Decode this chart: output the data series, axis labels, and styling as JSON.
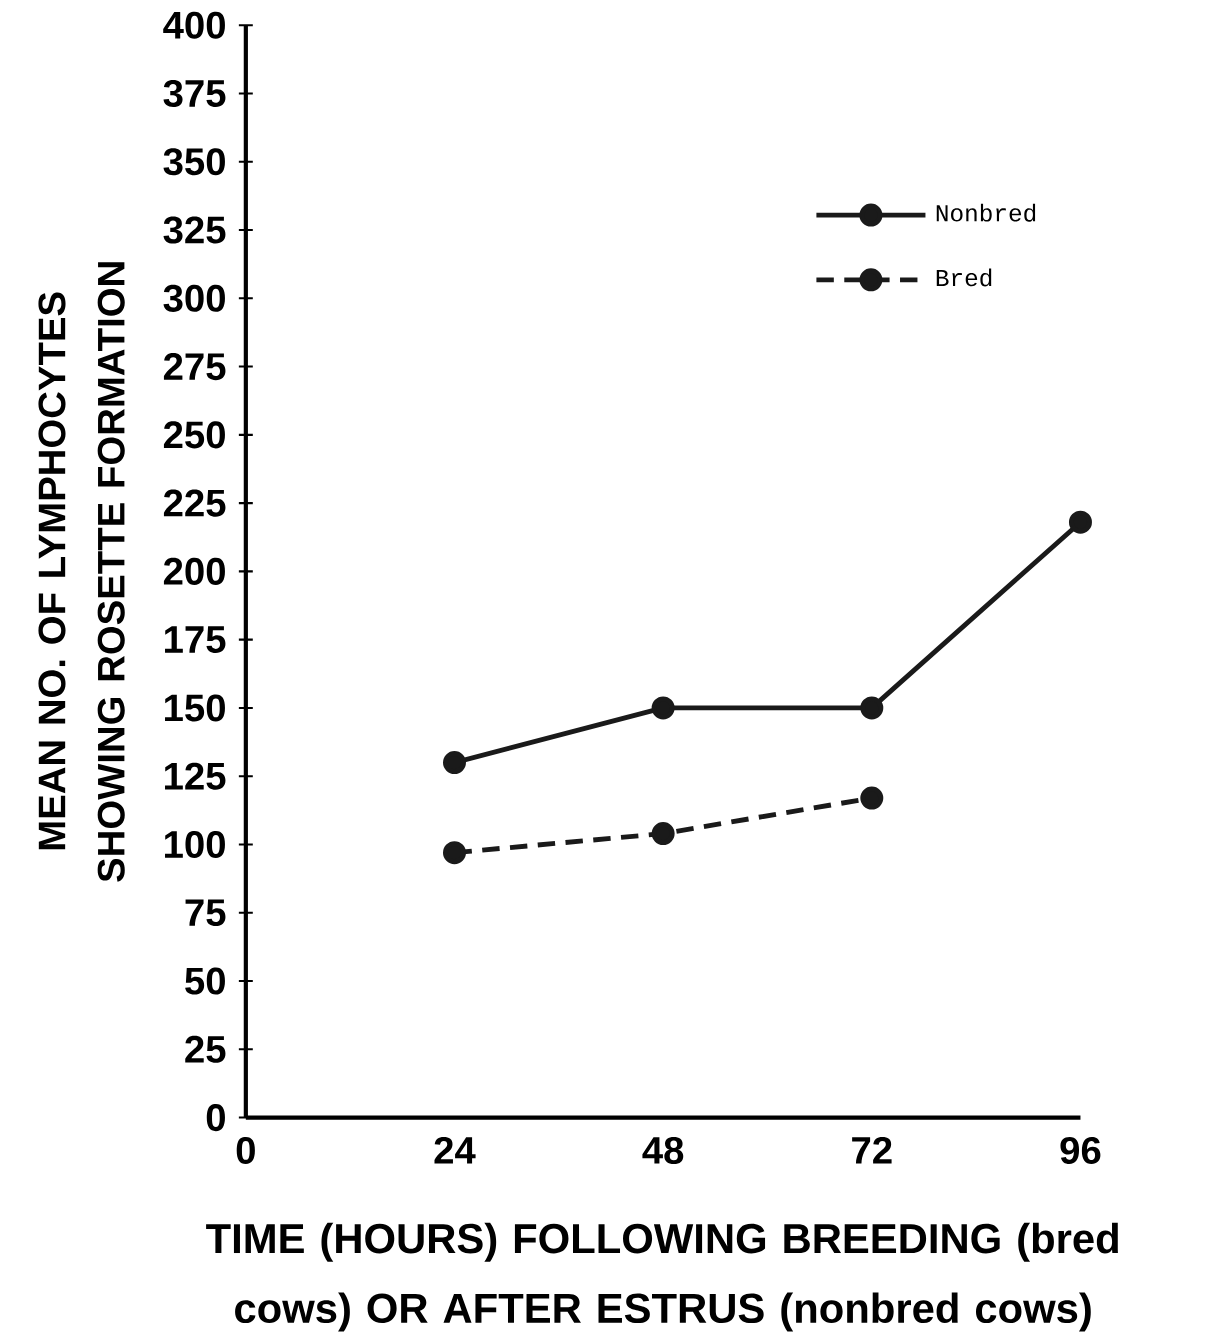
{
  "chart_data": {
    "type": "line",
    "xlabel": "TIME (HOURS) FOLLOWING BREEDING (bred cows) OR AFTER ESTRUS (nonbred cows)",
    "ylabel": "MEAN NO. OF LYMPHOCYTES SHOWING ROSETTE FORMATION",
    "x": [
      24,
      48,
      72,
      96
    ],
    "xlim": [
      0,
      96
    ],
    "ylim": [
      0,
      400
    ],
    "xticks": [
      0,
      24,
      48,
      72,
      96
    ],
    "yticks": [
      0,
      25,
      50,
      75,
      100,
      125,
      150,
      175,
      200,
      225,
      250,
      275,
      300,
      325,
      350,
      375,
      400
    ],
    "marker": "circle",
    "legend": "top right",
    "series": [
      {
        "name": "Nonbred",
        "color": "#1a1a1a",
        "line_style": "solid",
        "values": [
          130,
          150,
          150,
          218
        ]
      },
      {
        "name": "Bred",
        "color": "#1a1a1a",
        "line_style": "dashed",
        "values": [
          97,
          104,
          117,
          null
        ]
      }
    ]
  }
}
